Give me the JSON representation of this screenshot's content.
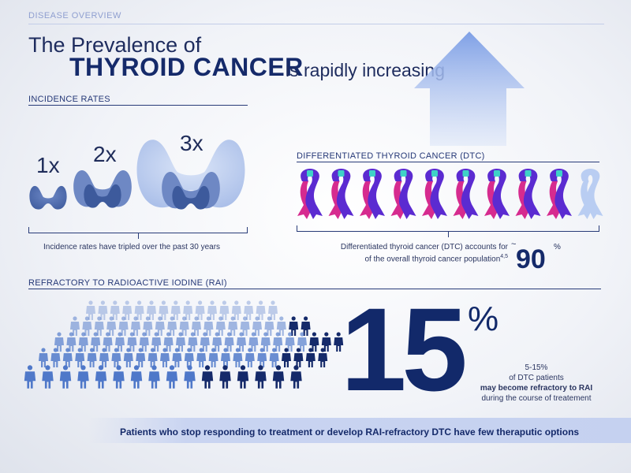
{
  "header": {
    "category": "DISEASE OVERVIEW",
    "title_line1": "The Prevalence of",
    "title_emphasis": "THYROID CANCER",
    "title_rest": "is rapidly increasing"
  },
  "incidence": {
    "heading": "INCIDENCE RATES",
    "multipliers": [
      "1x",
      "2x",
      "3x"
    ],
    "caption": "Incidence rates have tripled over the past 30 years"
  },
  "dtc": {
    "heading": "DIFFERENTIATED THYROID CANCER (DTC)",
    "ribbons_total": 10,
    "ribbons_highlighted": 9,
    "caption_line1": "Differentiated thyroid cancer (DTC) accounts for",
    "caption_line2": "of the overall thyroid cancer population",
    "caption_refs": "4,5",
    "approx": "~",
    "value": "90",
    "unit": "%"
  },
  "rai": {
    "heading": "REFRACTORY TO RADIOACTIVE IODINE (RAI)",
    "people_total": 100,
    "people_highlighted": 15,
    "big_value": "15",
    "big_unit": "%",
    "note_range": "5-15%",
    "note_line2": "of DTC patients",
    "note_bold": "may become refractory to RAI",
    "note_line4": "during the course of treatement"
  },
  "footer": {
    "banner": "Patients who stop responding to treatment or develop RAI-refractory DTC have few theraputic options"
  },
  "colors": {
    "navy": "#152a6a",
    "purple": "#5b2bd1",
    "magenta": "#d62b8f",
    "teal": "#3fd2c7",
    "light_blue": "#b9cdf2",
    "thyroid_dark": "#3d5a9c",
    "thyroid_light": "#b5c8ee"
  }
}
